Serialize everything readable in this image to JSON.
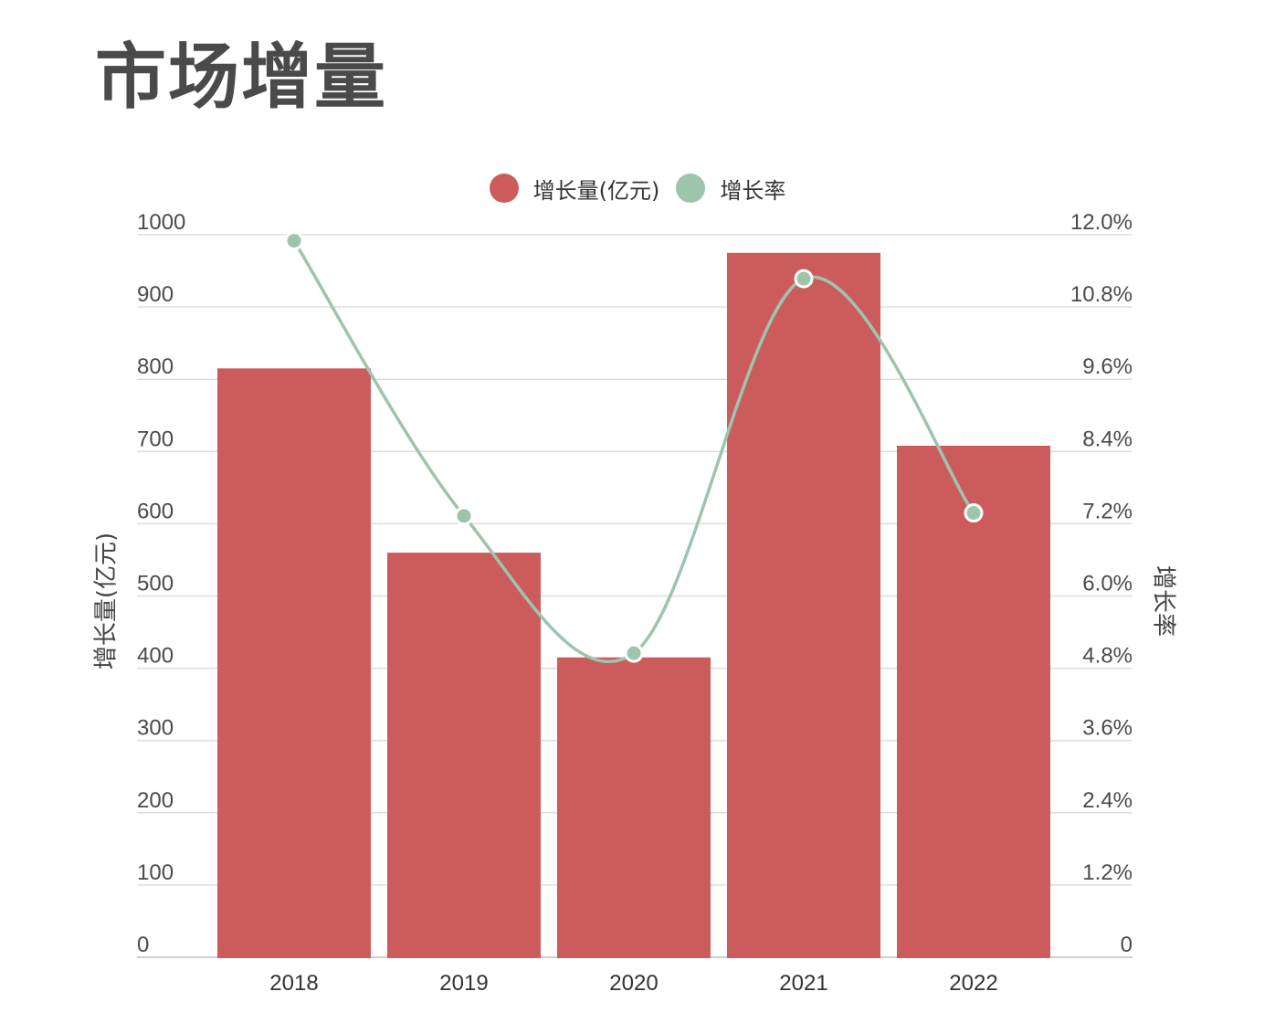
{
  "page": {
    "title": "市场增量"
  },
  "chart_data": {
    "type": "bar",
    "categories": [
      "2018",
      "2019",
      "2020",
      "2021",
      "2022"
    ],
    "series": [
      {
        "name": "增长量(亿元)",
        "type": "bar",
        "axis": "left",
        "color": "#cc5c5c",
        "values": [
          815,
          560,
          415,
          975,
          708
        ]
      },
      {
        "name": "增长率",
        "type": "line",
        "axis": "right",
        "color": "#9cc5ac",
        "values": [
          11.9,
          7.33,
          5.05,
          11.27,
          7.38
        ]
      }
    ],
    "left_axis": {
      "label": "增长量(亿元)",
      "ylim": [
        0,
        1000
      ],
      "ticks": [
        "0",
        "100",
        "200",
        "300",
        "400",
        "500",
        "600",
        "700",
        "800",
        "900",
        "1000"
      ]
    },
    "right_axis": {
      "label": "增长率",
      "ylim": [
        0,
        12
      ],
      "ticks": [
        "0",
        "1.2%",
        "2.4%",
        "3.6%",
        "4.8%",
        "6.0%",
        "7.2%",
        "8.4%",
        "9.6%",
        "10.8%",
        "12.0%"
      ]
    },
    "legend": {
      "position": "top-center"
    },
    "grid": true
  }
}
